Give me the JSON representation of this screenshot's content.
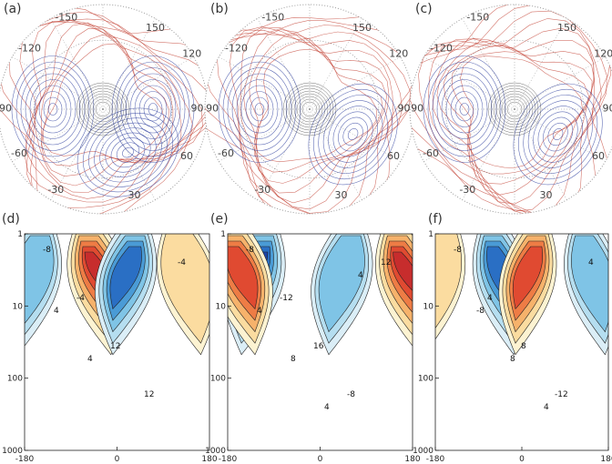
{
  "chart_data": [
    {
      "type": "contour",
      "projection": "polar-stereographic",
      "panel_label": "(a)",
      "longitude_labels": [
        "-150",
        "150",
        "-120",
        "120",
        "90",
        "90",
        "-60",
        "60",
        "-30",
        "30"
      ],
      "lat_labels": [
        "60",
        "90"
      ],
      "centers": [
        {
          "lon": 150,
          "sign": "negative"
        },
        {
          "lon": -90,
          "sign": "negative"
        },
        {
          "lon": 90,
          "sign": "negative"
        }
      ]
    },
    {
      "type": "contour",
      "projection": "polar-stereographic",
      "panel_label": "(b)",
      "longitude_labels": [
        "-150",
        "150",
        "-120",
        "120",
        "90",
        "90",
        "-60",
        "60",
        "-30",
        "30"
      ],
      "lat_labels": [
        "60",
        "90"
      ],
      "centers": [
        {
          "lon": 120,
          "sign": "negative"
        },
        {
          "lon": -90,
          "sign": "negative"
        }
      ]
    },
    {
      "type": "contour",
      "projection": "polar-stereographic",
      "panel_label": "(c)",
      "longitude_labels": [
        "-150",
        "150",
        "-120",
        "120",
        "90",
        "90",
        "-60",
        "60",
        "-30",
        "30"
      ],
      "lat_labels": [
        "60",
        "90"
      ],
      "centers": [
        {
          "lon": 120,
          "sign": "negative"
        },
        {
          "lon": -90,
          "sign": "negative"
        }
      ]
    },
    {
      "type": "contour",
      "panel_label": "(d)",
      "x_ticks": [
        "-180",
        "0",
        "180"
      ],
      "y_ticks": [
        "1",
        "10",
        "100",
        "1000"
      ],
      "xlim": [
        -180,
        180
      ],
      "ylim": [
        1000,
        1
      ],
      "y_scale": "log",
      "contour_labels": [
        "-8",
        "-4",
        "12",
        "12",
        "-4",
        "4",
        "4"
      ],
      "features": [
        {
          "lon": -55,
          "sign": "positive",
          "max": 20
        },
        {
          "lon": 35,
          "sign": "negative",
          "max": 16
        },
        {
          "lon": -150,
          "sign": "negative",
          "max": 8
        },
        {
          "lon": 120,
          "sign": "positive",
          "max": 6
        }
      ]
    },
    {
      "type": "contour",
      "panel_label": "(e)",
      "x_ticks": [
        "-180",
        "0",
        "180"
      ],
      "y_ticks": [
        "1",
        "10",
        "100",
        "1000"
      ],
      "xlim": [
        -180,
        180
      ],
      "ylim": [
        1000,
        1
      ],
      "y_scale": "log",
      "contour_labels": [
        "-8",
        "-12",
        "16",
        "-8",
        "12",
        "4",
        "8",
        "4",
        "4"
      ],
      "features": [
        {
          "lon": -110,
          "sign": "negative",
          "max": 18
        },
        {
          "lon": 150,
          "sign": "positive",
          "max": 18
        },
        {
          "lon": -170,
          "sign": "positive",
          "max": 14
        },
        {
          "lon": 60,
          "sign": "negative",
          "max": 8
        }
      ]
    },
    {
      "type": "contour",
      "panel_label": "(f)",
      "x_ticks": [
        "-180",
        "0",
        "180"
      ],
      "y_ticks": [
        "1",
        "10",
        "100",
        "1000"
      ],
      "xlim": [
        -180,
        180
      ],
      "ylim": [
        1000,
        1
      ],
      "y_scale": "log",
      "contour_labels": [
        "-8",
        "4",
        "8",
        "-12",
        "4",
        "-8",
        "8",
        "4"
      ],
      "features": [
        {
          "lon": -60,
          "sign": "negative",
          "max": 16
        },
        {
          "lon": 30,
          "sign": "positive",
          "max": 14
        },
        {
          "lon": 130,
          "sign": "negative",
          "max": 8
        },
        {
          "lon": -160,
          "sign": "positive",
          "max": 6
        }
      ]
    }
  ]
}
